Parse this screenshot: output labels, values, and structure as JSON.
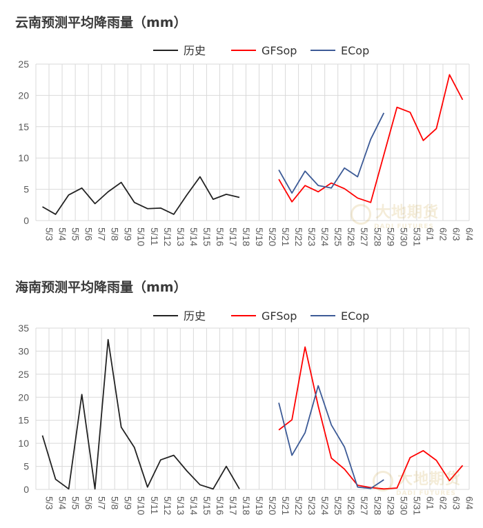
{
  "chart_data": [
    {
      "type": "line",
      "title": "云南预测平均降雨量（mm）",
      "ylim": [
        0,
        25
      ],
      "yticks": [
        0,
        5,
        10,
        15,
        20,
        25
      ],
      "grid": true,
      "legend": "top",
      "categories": [
        "5/3",
        "5/4",
        "5/5",
        "5/6",
        "5/7",
        "5/8",
        "5/9",
        "5/10",
        "5/11",
        "5/12",
        "5/13",
        "5/14",
        "5/15",
        "5/16",
        "5/17",
        "5/18",
        "5/19",
        "5/20",
        "5/21",
        "5/22",
        "5/23",
        "5/24",
        "5/25",
        "5/26",
        "5/27",
        "5/28",
        "5/29",
        "5/30",
        "5/31",
        "6/1",
        "6/2",
        "6/3",
        "6/4"
      ],
      "series": [
        {
          "name": "历史",
          "color": "#222222",
          "values": [
            2.2,
            1.0,
            4.1,
            5.2,
            2.7,
            4.6,
            6.1,
            2.9,
            1.9,
            2.0,
            1.0,
            4.1,
            7.0,
            3.4,
            4.2,
            3.7,
            null,
            null,
            null,
            null,
            null,
            null,
            null,
            null,
            null,
            null,
            null,
            null,
            null,
            null,
            null,
            null,
            null
          ]
        },
        {
          "name": "GFSop",
          "color": "#ff0000",
          "values": [
            null,
            null,
            null,
            null,
            null,
            null,
            null,
            null,
            null,
            null,
            null,
            null,
            null,
            null,
            null,
            null,
            null,
            null,
            6.6,
            3.0,
            5.6,
            4.6,
            6.0,
            5.1,
            3.6,
            2.9,
            10.5,
            18.1,
            17.3,
            12.8,
            14.7,
            23.3,
            19.3
          ]
        },
        {
          "name": "ECop",
          "color": "#3c5a96",
          "values": [
            null,
            null,
            null,
            null,
            null,
            null,
            null,
            null,
            null,
            null,
            null,
            null,
            null,
            null,
            null,
            null,
            null,
            null,
            8.1,
            4.4,
            7.9,
            5.6,
            5.2,
            8.4,
            7.0,
            13.0,
            17.2,
            null,
            null,
            null,
            null,
            null,
            null
          ]
        }
      ]
    },
    {
      "type": "line",
      "title": "海南预测平均降雨量（mm）",
      "ylim": [
        0,
        35
      ],
      "yticks": [
        0,
        5,
        10,
        15,
        20,
        25,
        30,
        35
      ],
      "grid": true,
      "legend": "top",
      "categories": [
        "5/3",
        "5/4",
        "5/5",
        "5/6",
        "5/7",
        "5/8",
        "5/9",
        "5/10",
        "5/11",
        "5/12",
        "5/13",
        "5/14",
        "5/15",
        "5/16",
        "5/17",
        "5/18",
        "5/19",
        "5/20",
        "5/21",
        "5/22",
        "5/23",
        "5/24",
        "5/25",
        "5/26",
        "5/27",
        "5/28",
        "5/29",
        "5/30",
        "5/31",
        "6/1",
        "6/2",
        "6/3",
        "6/4"
      ],
      "series": [
        {
          "name": "历史",
          "color": "#222222",
          "values": [
            11.7,
            2.2,
            0.1,
            20.6,
            0.1,
            32.5,
            13.5,
            9.1,
            0.5,
            6.4,
            7.4,
            4.0,
            1.0,
            0.1,
            5.0,
            0.1,
            null,
            null,
            null,
            null,
            null,
            null,
            null,
            null,
            null,
            null,
            null,
            null,
            null,
            null,
            null,
            null,
            null
          ]
        },
        {
          "name": "GFSop",
          "color": "#ff0000",
          "values": [
            null,
            null,
            null,
            null,
            null,
            null,
            null,
            null,
            null,
            null,
            null,
            null,
            null,
            null,
            null,
            null,
            null,
            null,
            12.9,
            15.1,
            30.9,
            18.1,
            6.8,
            4.4,
            0.9,
            0.4,
            0.1,
            0.3,
            6.9,
            8.4,
            6.3,
            1.9,
            5.2
          ]
        },
        {
          "name": "ECop",
          "color": "#3c5a96",
          "values": [
            null,
            null,
            null,
            null,
            null,
            null,
            null,
            null,
            null,
            null,
            null,
            null,
            null,
            null,
            null,
            null,
            null,
            null,
            18.8,
            7.4,
            12.3,
            22.5,
            14.0,
            9.2,
            0.5,
            0.2,
            2.1,
            null,
            null,
            null,
            null,
            null,
            null
          ]
        }
      ]
    }
  ],
  "watermark": {
    "cn": "大地期货",
    "en": "DADI FUTURES"
  }
}
